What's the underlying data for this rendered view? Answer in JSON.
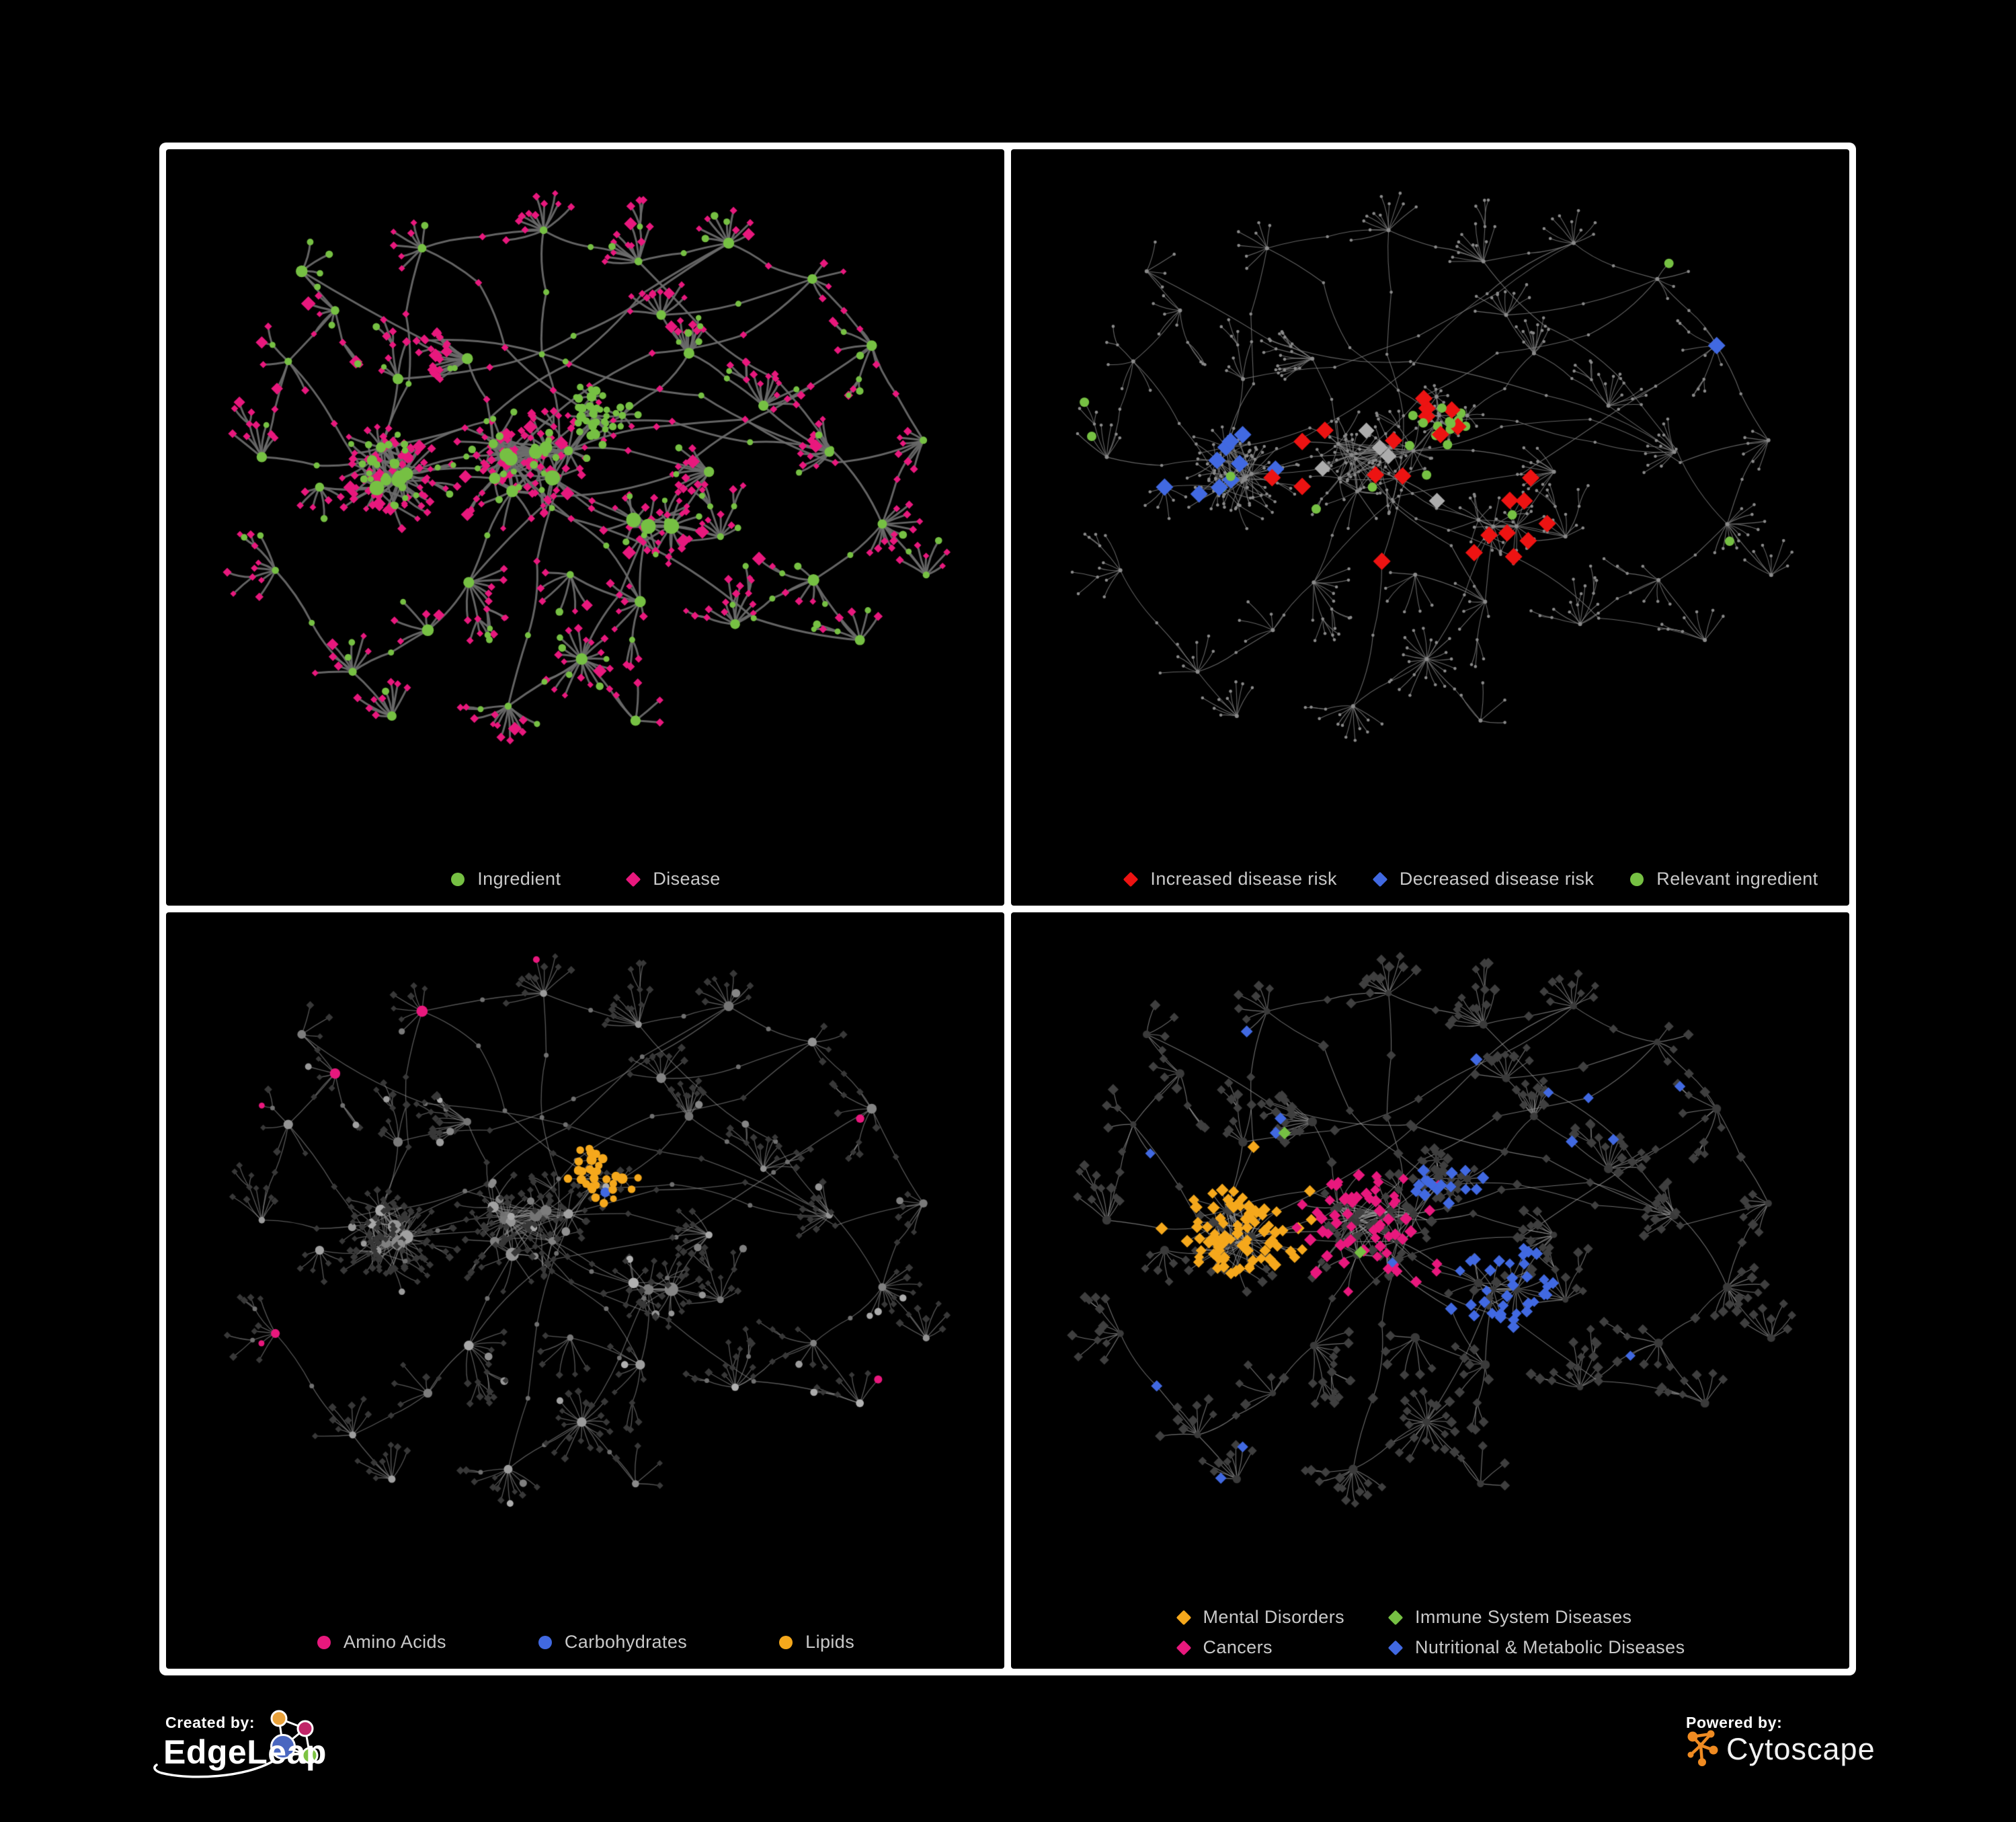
{
  "page": {
    "background": "#000000",
    "frame_color": "#FFFFFF"
  },
  "palette": {
    "green": "#76C043",
    "pink": "#E8187D",
    "red": "#ED1312",
    "blue": "#4169E1",
    "orange": "#F5A81C",
    "gray_highlight": "#ACACAC",
    "dim_diamond": "#3A3A3A",
    "dim_circle": "#383838",
    "base_dot": "#8A8A8A",
    "legend_text": "#C9C9C9"
  },
  "panels": [
    {
      "id": "ingredient-disease",
      "edge_color": "#6C6C6C",
      "legend": [
        {
          "label": "Ingredient",
          "shape": "circle",
          "color": "#76C043"
        },
        {
          "label": "Disease",
          "shape": "diamond",
          "color": "#E8187D"
        }
      ]
    },
    {
      "id": "disease-risk",
      "edge_color": "#7D7D7D",
      "legend": [
        {
          "label": "Increased disease risk",
          "shape": "diamond",
          "color": "#ED1312"
        },
        {
          "label": "Decreased disease risk",
          "shape": "diamond",
          "color": "#4169E1"
        },
        {
          "label": "Relevant ingredient",
          "shape": "circle",
          "color": "#76C043"
        }
      ]
    },
    {
      "id": "nutrient-class",
      "edge_color": "#8D8D8D",
      "legend": [
        {
          "label": "Amino Acids",
          "shape": "circle",
          "color": "#E8187D"
        },
        {
          "label": "Carbohydrates",
          "shape": "circle",
          "color": "#4169E1"
        },
        {
          "label": "Lipids",
          "shape": "circle",
          "color": "#F5A81C"
        }
      ]
    },
    {
      "id": "disease-category",
      "edge_color": "#9A9A9A",
      "legend": [
        {
          "label": "Mental Disorders",
          "shape": "diamond",
          "color": "#F5A81C"
        },
        {
          "label": "Immune System Diseases",
          "shape": "diamond",
          "color": "#76C043"
        },
        {
          "label": "Cancers",
          "shape": "diamond",
          "color": "#E8187D"
        },
        {
          "label": "Nutritional & Metabolic Diseases",
          "shape": "diamond",
          "color": "#4169E1"
        }
      ]
    }
  ],
  "footer": {
    "created_by_label": "Created by:",
    "edgeleap_name": "EdgeLeap",
    "edgeleap_logo_colors": {
      "orange": "#E9A23B",
      "pink": "#C02568",
      "blue": "#4A67C0",
      "green": "#7CC242"
    },
    "powered_by_label": "Powered by:",
    "cytoscape_name": "Cytoscape",
    "cytoscape_orange": "#EF8B22"
  }
}
